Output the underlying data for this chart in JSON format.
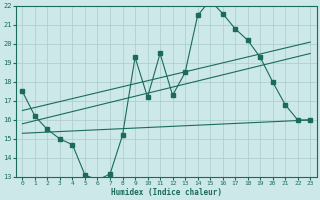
{
  "xlabel": "Humidex (Indice chaleur)",
  "bg_color": "#cce8e8",
  "grid_color": "#aacccc",
  "line_color": "#1a6b5a",
  "xlim": [
    -0.5,
    23.5
  ],
  "ylim": [
    13,
    22
  ],
  "xticks": [
    0,
    1,
    2,
    3,
    4,
    5,
    6,
    7,
    8,
    9,
    10,
    11,
    12,
    13,
    14,
    15,
    16,
    17,
    18,
    19,
    20,
    21,
    22,
    23
  ],
  "yticks": [
    13,
    14,
    15,
    16,
    17,
    18,
    19,
    20,
    21,
    22
  ],
  "series1_x": [
    0,
    1,
    2,
    3,
    4,
    5,
    6,
    7,
    8,
    9,
    10,
    11,
    12,
    13,
    14,
    15,
    16,
    17,
    18,
    19,
    20,
    21,
    22,
    23
  ],
  "series1_y": [
    17.5,
    16.2,
    15.5,
    15.0,
    14.7,
    13.1,
    12.85,
    13.15,
    15.2,
    19.3,
    17.2,
    19.5,
    17.3,
    18.5,
    21.5,
    22.3,
    21.6,
    20.8,
    20.2,
    19.3,
    18.0,
    16.8,
    16.0,
    16.0
  ],
  "line2_x": [
    0,
    23
  ],
  "line2_y": [
    16.5,
    20.1
  ],
  "line3_x": [
    0,
    23
  ],
  "line3_y": [
    15.8,
    19.5
  ],
  "line4_x": [
    0,
    23
  ],
  "line4_y": [
    15.3,
    16.0
  ]
}
